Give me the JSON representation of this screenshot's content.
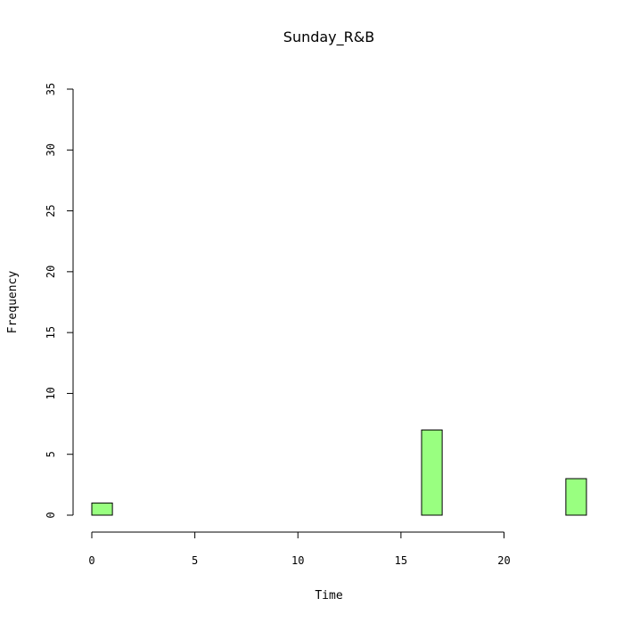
{
  "chart_data": {
    "type": "bar",
    "title": "Sunday_R&B",
    "xlabel": "Time",
    "ylabel": "Frequency",
    "xlim": [
      0,
      24
    ],
    "ylim": [
      0,
      35
    ],
    "x_ticks": [
      0,
      5,
      10,
      15,
      20
    ],
    "y_ticks": [
      0,
      5,
      10,
      15,
      20,
      25,
      30,
      35
    ],
    "bin_width": 1,
    "bins": [
      {
        "start": 0,
        "end": 1,
        "count": 1
      },
      {
        "start": 1,
        "end": 2,
        "count": 0
      },
      {
        "start": 2,
        "end": 3,
        "count": 0
      },
      {
        "start": 3,
        "end": 4,
        "count": 0
      },
      {
        "start": 4,
        "end": 5,
        "count": 0
      },
      {
        "start": 5,
        "end": 6,
        "count": 0
      },
      {
        "start": 6,
        "end": 7,
        "count": 0
      },
      {
        "start": 7,
        "end": 8,
        "count": 0
      },
      {
        "start": 8,
        "end": 9,
        "count": 0
      },
      {
        "start": 9,
        "end": 10,
        "count": 0
      },
      {
        "start": 10,
        "end": 11,
        "count": 0
      },
      {
        "start": 11,
        "end": 12,
        "count": 0
      },
      {
        "start": 12,
        "end": 13,
        "count": 0
      },
      {
        "start": 13,
        "end": 14,
        "count": 0
      },
      {
        "start": 14,
        "end": 15,
        "count": 0
      },
      {
        "start": 15,
        "end": 16,
        "count": 0
      },
      {
        "start": 16,
        "end": 17,
        "count": 7
      },
      {
        "start": 17,
        "end": 18,
        "count": 0
      },
      {
        "start": 18,
        "end": 19,
        "count": 0
      },
      {
        "start": 19,
        "end": 20,
        "count": 0
      },
      {
        "start": 20,
        "end": 21,
        "count": 0
      },
      {
        "start": 21,
        "end": 22,
        "count": 0
      },
      {
        "start": 22,
        "end": 23,
        "count": 0
      },
      {
        "start": 23,
        "end": 24,
        "count": 3
      }
    ],
    "bar_color": "#99ff80",
    "grid": false,
    "legend": "none"
  }
}
